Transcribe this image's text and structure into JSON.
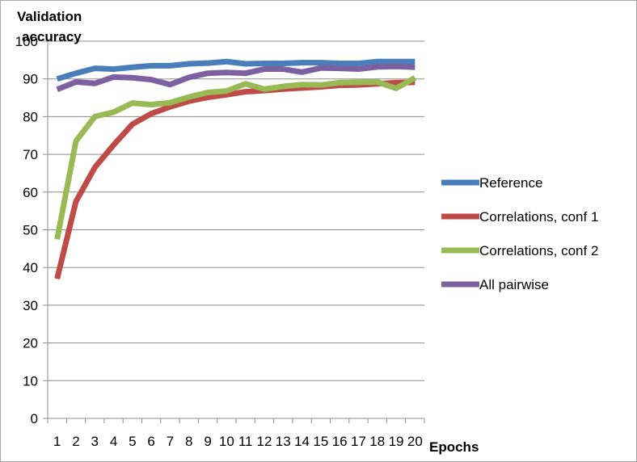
{
  "chart_data": {
    "type": "line",
    "ylabel_line1": "Validation",
    "ylabel_line2": "accuracy",
    "xlabel": "Epochs",
    "x": [
      1,
      2,
      3,
      4,
      5,
      6,
      7,
      8,
      9,
      10,
      11,
      12,
      13,
      14,
      15,
      16,
      17,
      18,
      19,
      20
    ],
    "y_ticks": [
      0,
      10,
      20,
      30,
      40,
      50,
      60,
      70,
      80,
      90,
      100
    ],
    "ylim": [
      0,
      100
    ],
    "grid": true,
    "legend_position": "right",
    "series": [
      {
        "name": "Reference",
        "color": "#4a7ebb",
        "values": [
          90,
          91.5,
          92.8,
          92.6,
          93.1,
          93.5,
          93.5,
          94,
          94.2,
          94.6,
          94,
          94.1,
          94.1,
          94.3,
          94.3,
          94.1,
          94.1,
          94.6,
          94.6,
          94.6
        ]
      },
      {
        "name": "Correlations, conf 1",
        "color": "#be4b48",
        "values": [
          37,
          57.5,
          66.5,
          72.5,
          78,
          80.8,
          82.6,
          84.1,
          85.1,
          85.8,
          86.6,
          86.9,
          87.3,
          87.6,
          87.9,
          88.3,
          88.4,
          88.7,
          89,
          89.1
        ]
      },
      {
        "name": "Correlations, conf 2",
        "color": "#98b954",
        "values": [
          47.5,
          73.5,
          80,
          81.2,
          83.6,
          83.2,
          83.7,
          85.2,
          86.4,
          86.8,
          88.7,
          87.3,
          88,
          88.5,
          88.4,
          89,
          89.1,
          89.2,
          87.5,
          90.3
        ]
      },
      {
        "name": "All pairwise",
        "color": "#7d60a0",
        "values": [
          87.2,
          89.2,
          88.8,
          90.5,
          90.3,
          89.8,
          88.5,
          90.4,
          91.5,
          91.7,
          91.5,
          92.6,
          92.6,
          91.8,
          92.9,
          92.8,
          92.6,
          93.2,
          93.3,
          93.1
        ]
      }
    ]
  }
}
